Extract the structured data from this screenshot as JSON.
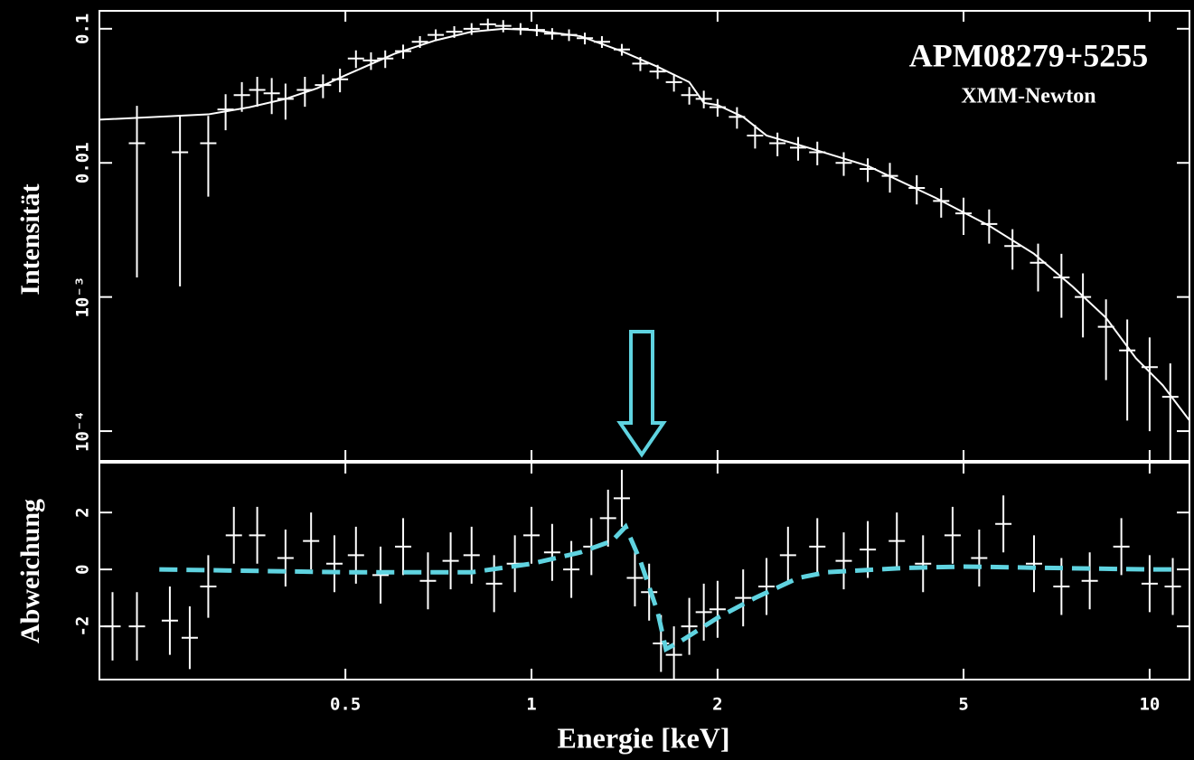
{
  "chart_data": [
    {
      "type": "errorbar",
      "annotations": [
        "APM08279+5255",
        "XMM-Newton"
      ],
      "ylabel": "Intensität",
      "xlog": true,
      "ylog": true,
      "xlim": [
        0.2,
        11.6
      ],
      "ylim": [
        6e-05,
        0.136
      ],
      "xticks": [
        0.5,
        1,
        2,
        5,
        10
      ],
      "yticks": [
        0.1,
        0.01,
        {
          "value": 0.001,
          "label": "10⁻³"
        },
        {
          "value": 0.0001,
          "label": "10⁻⁴"
        }
      ],
      "series": [
        {
          "type": "scatter",
          "color": "#ffffff",
          "x": [
            0.23,
            0.27,
            0.3,
            0.32,
            0.34,
            0.36,
            0.38,
            0.4,
            0.43,
            0.46,
            0.49,
            0.52,
            0.55,
            0.58,
            0.62,
            0.66,
            0.7,
            0.75,
            0.8,
            0.85,
            0.9,
            0.96,
            1.02,
            1.08,
            1.15,
            1.22,
            1.3,
            1.4,
            1.5,
            1.6,
            1.7,
            1.8,
            1.9,
            2.0,
            2.15,
            2.3,
            2.5,
            2.7,
            2.9,
            3.2,
            3.5,
            3.8,
            4.2,
            4.6,
            5.0,
            5.5,
            6.0,
            6.6,
            7.2,
            7.8,
            8.5,
            9.2,
            10.0,
            10.8
          ],
          "values": [
            0.014,
            0.012,
            0.014,
            0.025,
            0.032,
            0.035,
            0.033,
            0.03,
            0.035,
            0.038,
            0.042,
            0.06,
            0.058,
            0.06,
            0.068,
            0.08,
            0.09,
            0.095,
            0.1,
            0.108,
            0.105,
            0.1,
            0.098,
            0.092,
            0.09,
            0.085,
            0.08,
            0.07,
            0.055,
            0.048,
            0.04,
            0.032,
            0.03,
            0.026,
            0.022,
            0.016,
            0.014,
            0.013,
            0.012,
            0.01,
            0.009,
            0.008,
            0.0065,
            0.0052,
            0.0042,
            0.0035,
            0.0024,
            0.0018,
            0.0014,
            0.001,
            0.0006,
            0.0004,
            0.0003,
            0.00018
          ],
          "errors": [
            0.0126,
            0.0108,
            0.0084,
            0.0075,
            0.008,
            0.0088,
            0.0099,
            0.009,
            0.0088,
            0.0076,
            0.0084,
            0.009,
            0.0087,
            0.009,
            0.0082,
            0.008,
            0.009,
            0.0095,
            0.01,
            0.011,
            0.011,
            0.01,
            0.01,
            0.009,
            0.009,
            0.0085,
            0.008,
            0.007,
            0.0066,
            0.0058,
            0.006,
            0.0048,
            0.0045,
            0.0039,
            0.004,
            0.0032,
            0.0028,
            0.0026,
            0.0024,
            0.002,
            0.0018,
            0.002,
            0.0016,
            0.0013,
            0.0013,
            0.001,
            0.0008,
            0.0007,
            0.0007,
            0.0005,
            0.00036,
            0.00028,
            0.0002,
            0.00014
          ]
        },
        {
          "type": "line",
          "color": "#ffffff",
          "x": [
            0.2,
            0.3,
            0.35,
            0.4,
            0.45,
            0.5,
            0.6,
            0.7,
            0.8,
            0.9,
            1.0,
            1.2,
            1.4,
            1.6,
            1.8,
            1.9,
            2.0,
            2.2,
            2.4,
            2.8,
            3.5,
            4.5,
            5.5,
            6.5,
            7.5,
            8.5,
            9.5,
            10.5,
            11.6
          ],
          "values": [
            0.021,
            0.023,
            0.026,
            0.03,
            0.036,
            0.045,
            0.065,
            0.082,
            0.095,
            0.1,
            0.098,
            0.088,
            0.068,
            0.052,
            0.04,
            0.028,
            0.027,
            0.022,
            0.016,
            0.013,
            0.0095,
            0.0055,
            0.0034,
            0.0021,
            0.0012,
            0.0007,
            0.00035,
            0.00022,
            0.00012
          ]
        }
      ]
    },
    {
      "type": "errorbar",
      "ylabel": "Abweichung",
      "xlabel": "Energie [keV]",
      "xlog": true,
      "xlim": [
        0.2,
        11.6
      ],
      "ylim": [
        -3.87,
        3.75
      ],
      "xticks": [
        0.5,
        1,
        2,
        5,
        10
      ],
      "yticks": [
        2,
        0,
        -2
      ],
      "series": [
        {
          "type": "scatter",
          "color": "#ffffff",
          "x": [
            0.21,
            0.23,
            0.26,
            0.28,
            0.3,
            0.33,
            0.36,
            0.4,
            0.44,
            0.48,
            0.52,
            0.57,
            0.62,
            0.68,
            0.74,
            0.8,
            0.87,
            0.94,
            1.0,
            1.08,
            1.16,
            1.25,
            1.33,
            1.4,
            1.47,
            1.55,
            1.62,
            1.7,
            1.8,
            1.9,
            2.0,
            2.2,
            2.4,
            2.6,
            2.9,
            3.2,
            3.5,
            3.9,
            4.3,
            4.8,
            5.3,
            5.8,
            6.5,
            7.2,
            8.0,
            9.0,
            10.0,
            10.9
          ],
          "values": [
            -2.0,
            -2.0,
            -1.8,
            -2.4,
            -0.6,
            1.2,
            1.2,
            0.4,
            1.0,
            0.2,
            0.5,
            -0.2,
            0.8,
            -0.4,
            0.3,
            0.5,
            -0.5,
            0.2,
            1.2,
            0.6,
            0.0,
            0.8,
            1.8,
            2.5,
            -0.3,
            -0.8,
            -2.6,
            -3.0,
            -2.0,
            -1.5,
            -1.4,
            -1.0,
            -0.6,
            0.5,
            0.8,
            0.3,
            0.7,
            1.0,
            0.2,
            1.2,
            0.4,
            1.6,
            0.2,
            -0.6,
            -0.4,
            0.8,
            -0.5,
            -0.6
          ],
          "errors": [
            1.2,
            1.2,
            1.2,
            1.1,
            1.1,
            1.0,
            1.0,
            1.0,
            1.0,
            1.0,
            1.0,
            1.0,
            1.0,
            1.0,
            1.0,
            1.0,
            1.0,
            1.0,
            1.0,
            1.0,
            1.0,
            1.0,
            1.0,
            1.0,
            1.0,
            1.0,
            1.0,
            1.0,
            1.0,
            1.0,
            1.0,
            1.0,
            1.0,
            1.0,
            1.0,
            1.0,
            1.0,
            1.0,
            1.0,
            1.0,
            1.0,
            1.0,
            1.0,
            1.0,
            1.0,
            1.0,
            1.0,
            1.0
          ]
        },
        {
          "type": "line",
          "color": "#5fd3e0",
          "dash": true,
          "x": [
            0.25,
            0.5,
            0.8,
            1.0,
            1.2,
            1.35,
            1.42,
            1.5,
            1.6,
            1.65,
            1.75,
            2.0,
            2.3,
            2.7,
            3.0,
            4.0,
            5.0,
            7.0,
            10.0,
            11.0
          ],
          "values": [
            0,
            -0.1,
            -0.1,
            0.2,
            0.6,
            1.0,
            1.5,
            0.3,
            -1.5,
            -2.8,
            -2.5,
            -1.7,
            -1.0,
            -0.3,
            -0.1,
            0.05,
            0.1,
            0.05,
            0.0,
            0.0
          ]
        }
      ]
    }
  ]
}
